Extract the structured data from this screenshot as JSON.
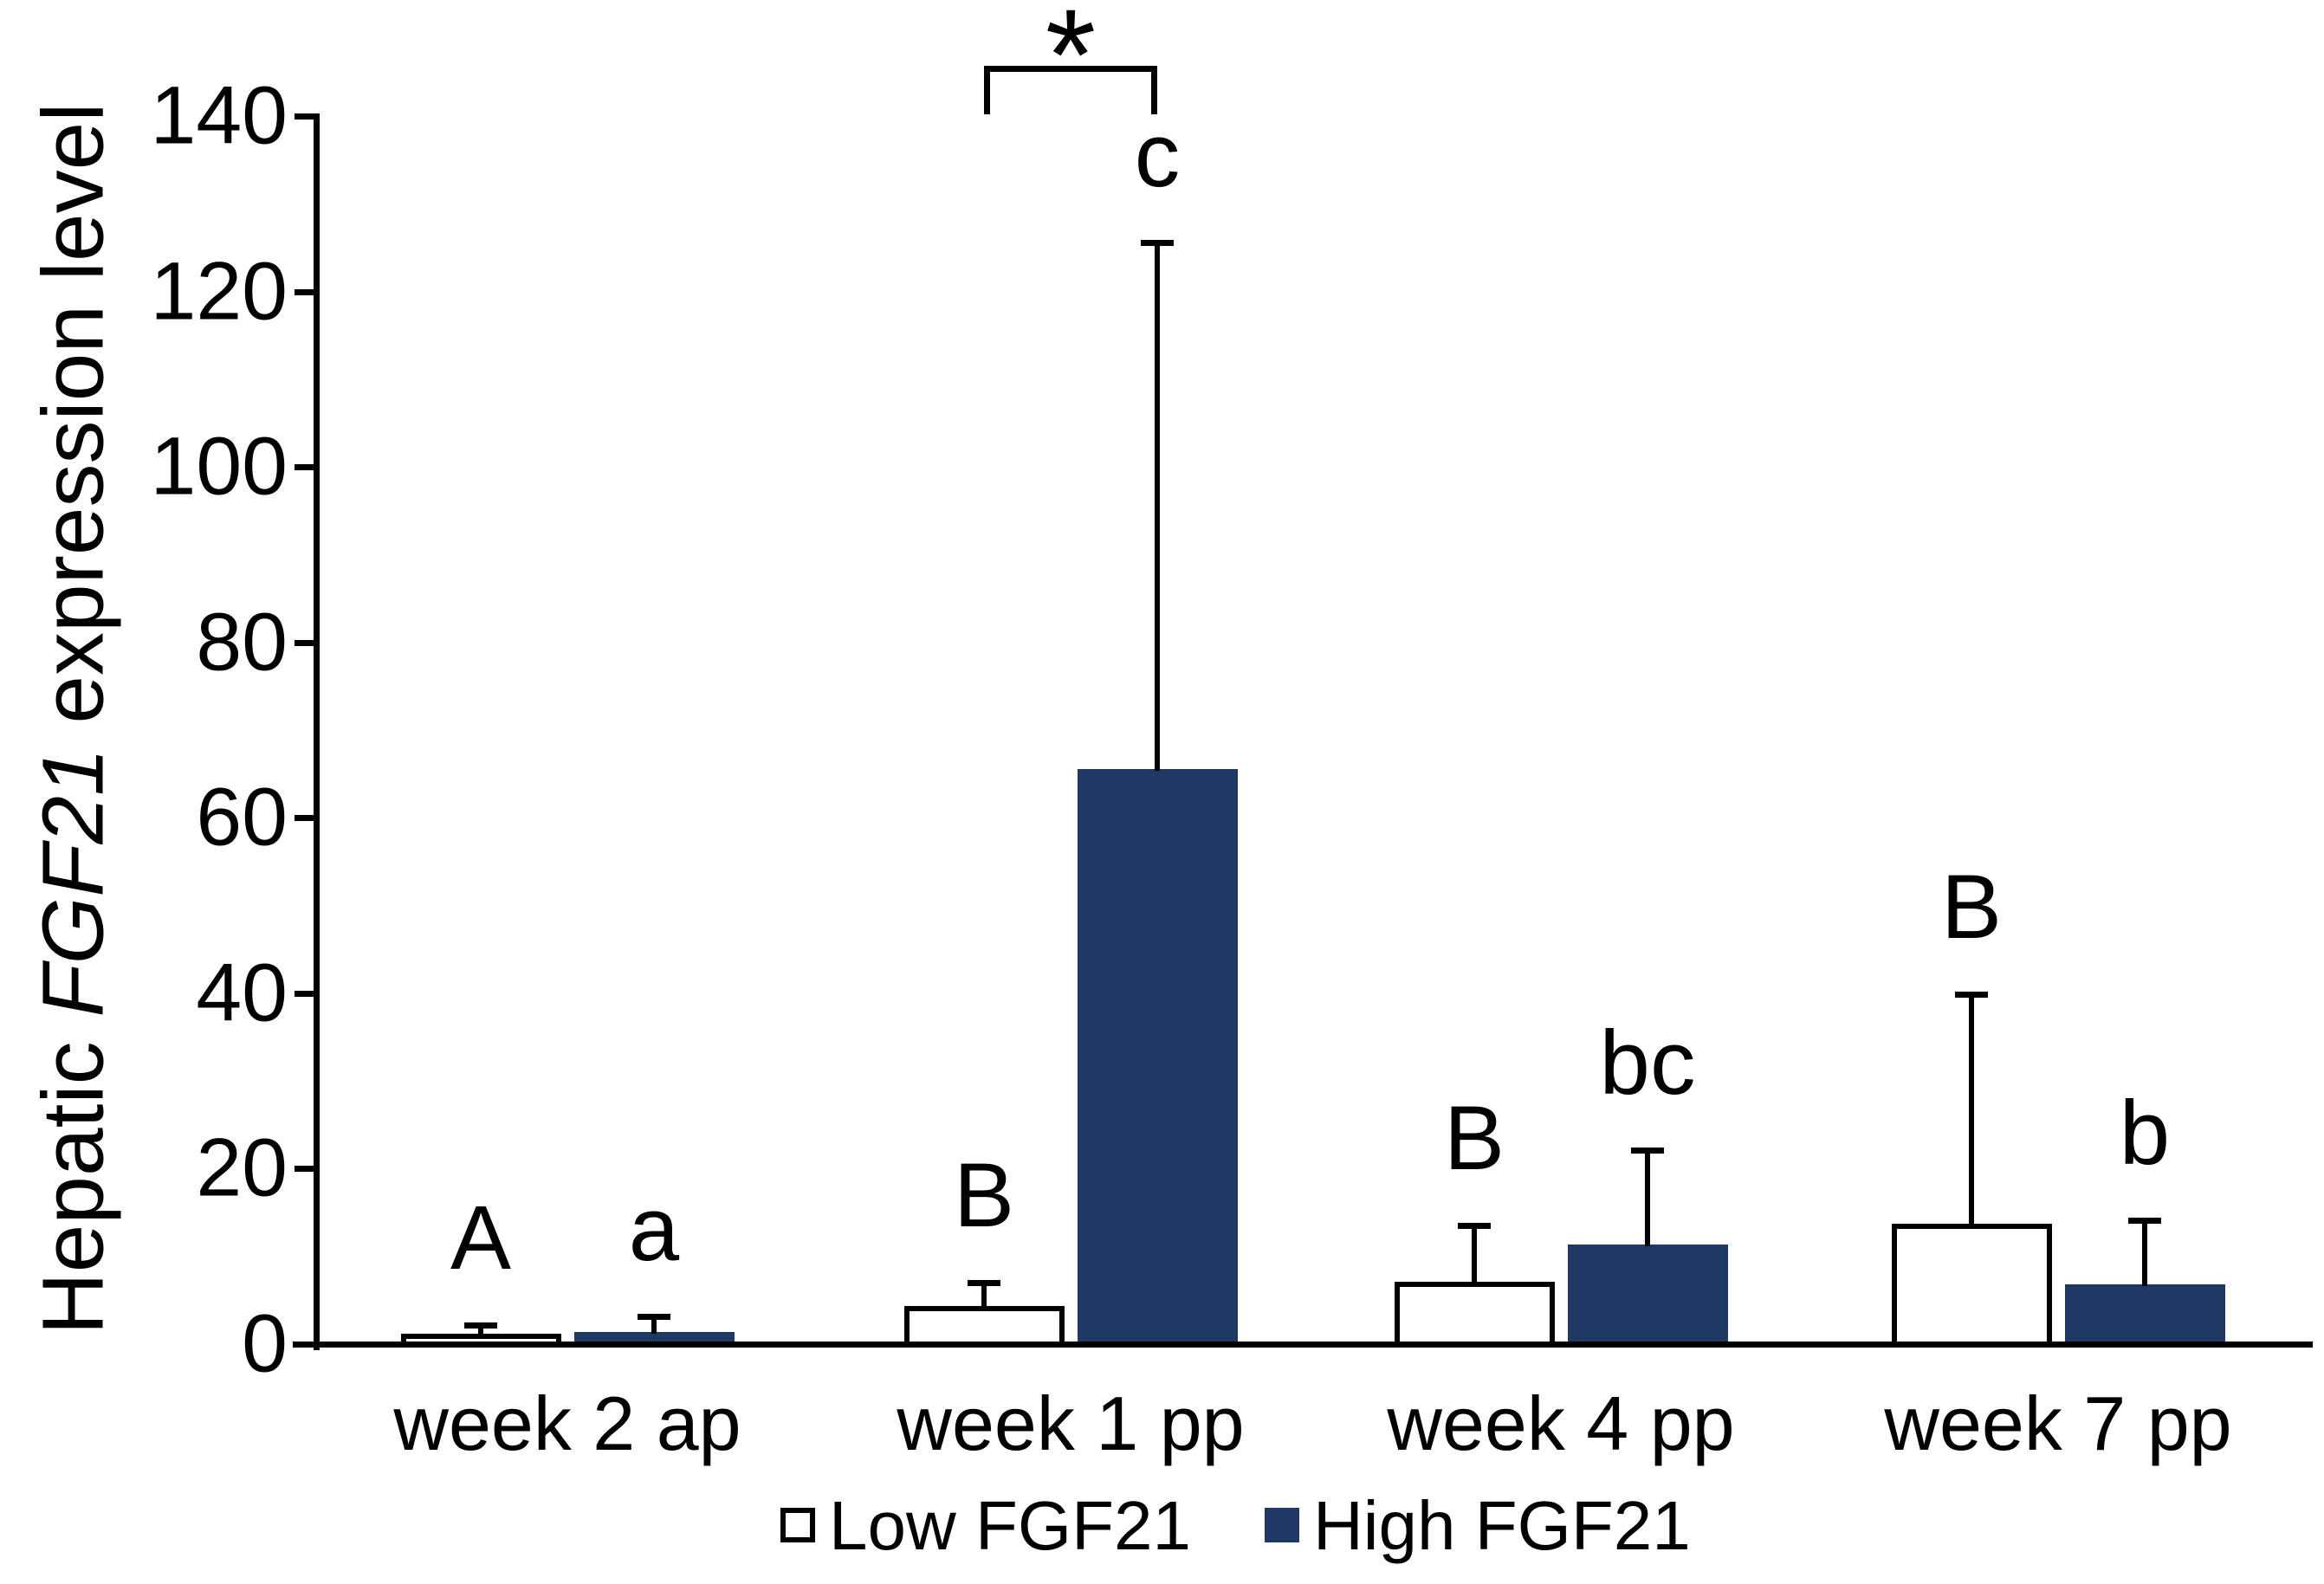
{
  "chart_data": {
    "type": "bar",
    "title": "",
    "ylabel_parts": {
      "prefix": "Hepatic ",
      "italic": "FGF21",
      "suffix": " expression level"
    },
    "ylabel_full": "Hepatic FGF21 expression level",
    "categories": [
      "week 2 ap",
      "week 1 pp",
      "week 4 pp",
      "week 7 pp"
    ],
    "series": [
      {
        "name": "Low FGF21",
        "fill": "#FFFFFF",
        "values": [
          1.2,
          4.3,
          7.1,
          13.7
        ],
        "errors_plus": [
          1.0,
          2.7,
          6.4,
          26.2
        ],
        "letters": [
          "A",
          "B",
          "B",
          "B"
        ]
      },
      {
        "name": "High FGF21",
        "fill": "#1F3864",
        "values": [
          1.4,
          65.6,
          11.4,
          6.8
        ],
        "errors_plus": [
          1.8,
          60.0,
          10.7,
          7.3
        ],
        "letters": [
          "a",
          "c",
          "bc",
          "b"
        ]
      }
    ],
    "ylim": [
      0,
      140
    ],
    "ytick_step": 20,
    "yticks": [
      0,
      20,
      40,
      60,
      80,
      100,
      120,
      140
    ],
    "grid": "off",
    "legend_position": "bottom",
    "error_bars": "positive only, capped",
    "significance": {
      "label": "*",
      "group": "week 1 pp",
      "between": [
        "Low FGF21",
        "High FGF21"
      ]
    }
  },
  "legend": {
    "items": [
      {
        "label": "Low FGF21",
        "swatch": "#FFFFFF"
      },
      {
        "label": "High FGF21",
        "swatch": "#1F3864"
      }
    ]
  },
  "colors": {
    "high_series": "#1F3864",
    "low_series_fill": "#FFFFFF",
    "stroke": "#000000",
    "background": "#FFFFFF"
  }
}
